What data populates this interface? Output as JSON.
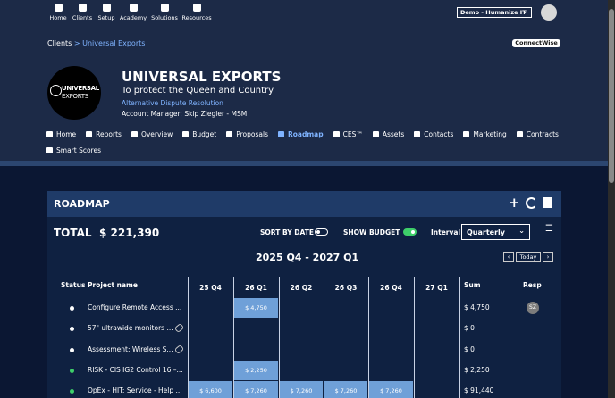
{
  "nav": {
    "items": [
      "Home",
      "Clients",
      "Setup",
      "Academy",
      "Solutions",
      "Resources"
    ],
    "account": "Demo - Humanize IT"
  },
  "breadcrumb": {
    "parent": "Clients",
    "separator": ">",
    "current": "Universal Exports"
  },
  "connectwise": "ConnectWise",
  "company": {
    "logo_line1": "UNIVERSAL",
    "logo_line2": "EXPORTS",
    "name": "UNIVERSAL EXPORTS",
    "tagline": "To protect the Queen and Country",
    "link": "Alternative Dispute Resolution",
    "manager": "Account Manager: Skip Ziegler - MSM"
  },
  "tabs": [
    {
      "label": "Home",
      "active": false
    },
    {
      "label": "Reports",
      "active": false
    },
    {
      "label": "Overview",
      "active": false
    },
    {
      "label": "Budget",
      "active": false
    },
    {
      "label": "Proposals",
      "active": false
    },
    {
      "label": "Roadmap",
      "active": true
    },
    {
      "label": "CES™",
      "active": false
    },
    {
      "label": "Assets",
      "active": false
    },
    {
      "label": "Contacts",
      "active": false
    },
    {
      "label": "Marketing",
      "active": false
    },
    {
      "label": "Contracts",
      "active": false
    },
    {
      "label": "Smart Scores",
      "active": false
    }
  ],
  "roadmap": {
    "title": "ROADMAP",
    "total_label": "TOTAL",
    "total": "$ 221,390",
    "sort_label": "SORT BY DATE",
    "sort_on": false,
    "budget_label": "SHOW BUDGET",
    "budget_on": true,
    "interval_label": "Interval",
    "interval": "Quarterly",
    "range": "2025 Q4 - 2027 Q1",
    "today": "Today",
    "columns": {
      "status": "Status",
      "project": "Project name",
      "periods": [
        "25 Q4",
        "26 Q1",
        "26 Q2",
        "26 Q3",
        "26 Q4",
        "27 Q1"
      ],
      "sum": "Sum",
      "resp": "Resp"
    },
    "rows": [
      {
        "status_color": "#ffffff",
        "name": "Configure Remote Access ...",
        "linked": false,
        "cells": [
          null,
          "$ 4,750",
          null,
          null,
          null,
          null
        ],
        "sum": "$ 4,750",
        "resp": "SZ"
      },
      {
        "status_color": "#ffffff",
        "name": "57\" ultrawide monitors ...",
        "linked": true,
        "cells": [
          null,
          null,
          null,
          null,
          null,
          null
        ],
        "sum": "$ 0",
        "resp": null
      },
      {
        "status_color": "#ffffff",
        "name": "Assessment: Wireless S...",
        "linked": true,
        "cells": [
          null,
          null,
          null,
          null,
          null,
          null
        ],
        "sum": "$ 0",
        "resp": null
      },
      {
        "status_color": "#3ecf6a",
        "name": "RISK - CIS IG2 Control 16 –...",
        "linked": false,
        "cells": [
          null,
          "$ 2,250",
          null,
          null,
          null,
          null
        ],
        "sum": "$ 2,250",
        "resp": null
      },
      {
        "status_color": "#3ecf6a",
        "name": "OpEx - HIT: Service - Help ...",
        "linked": false,
        "cells": [
          "$ 6,600",
          "$ 7,260",
          "$ 7,260",
          "$ 7,260",
          "$ 7,260",
          null
        ],
        "sum": "$ 91,440",
        "resp": null
      }
    ]
  }
}
